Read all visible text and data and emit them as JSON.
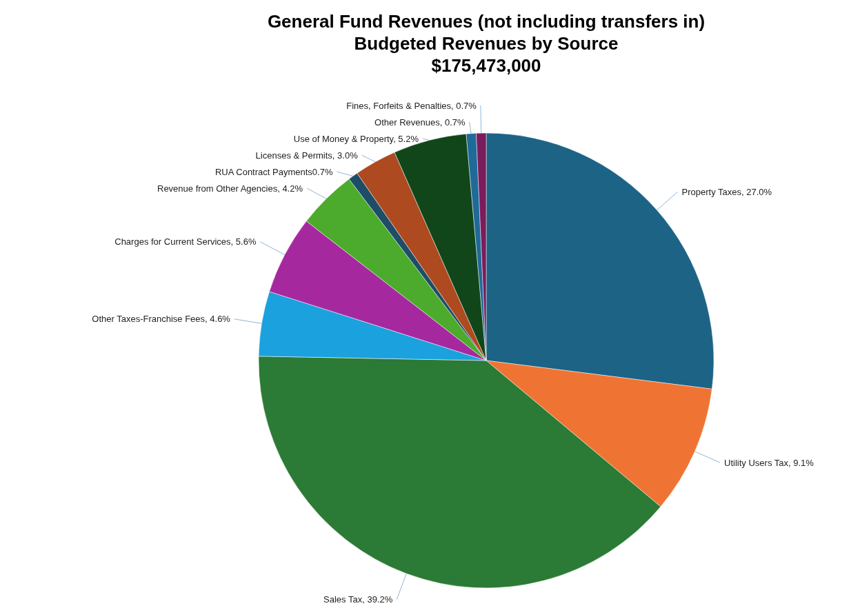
{
  "chart_data": {
    "type": "pie",
    "title": "General Fund Revenues (not including transfers in)",
    "subtitle": "Budgeted Revenues by Source",
    "annotations": [
      "$175,473,000"
    ],
    "categories": [
      "Property Taxes",
      "Utility Users Tax",
      "Sales Tax",
      "Other Taxes-Franchise Fees",
      "Charges for Current Services",
      "Revenue from Other Agencies",
      "RUA Contract Payments",
      "Licenses & Permits",
      "Use of Money & Property",
      "Other Revenues",
      "Fines, Forfeits & Penalties"
    ],
    "values": [
      27.0,
      9.1,
      39.2,
      4.6,
      5.6,
      4.2,
      0.7,
      3.0,
      5.2,
      0.7,
      0.7
    ],
    "value_labels": [
      ", 27.0%",
      ", 9.1%",
      ", 39.2%",
      ", 4.6%",
      ", 5.6%",
      ", 4.2%",
      "0.7%",
      ", 3.0%",
      ", 5.2%",
      ", 0.7%",
      ", 0.7%"
    ],
    "colors": [
      "#1d6386",
      "#ef7433",
      "#2b7a35",
      "#1ba1de",
      "#a6289f",
      "#4cab2c",
      "#1e4d68",
      "#ad4a1f",
      "#11461a",
      "#1f6a98",
      "#7b1c5c"
    ]
  }
}
